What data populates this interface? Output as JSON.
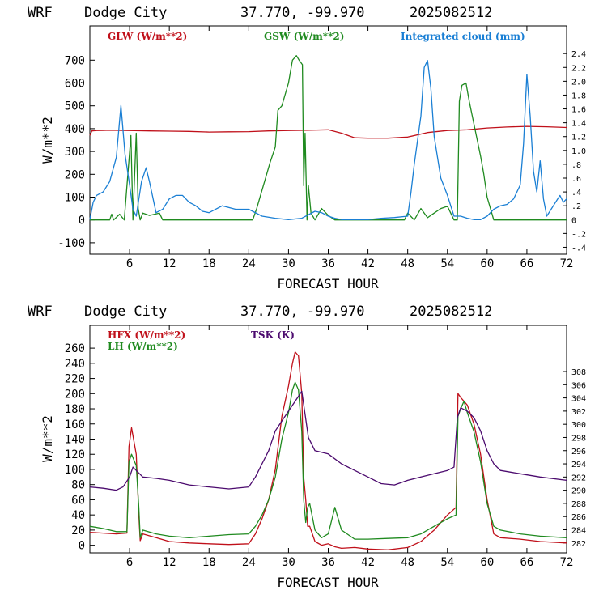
{
  "chart_data": [
    {
      "type": "line",
      "header": {
        "model": "WRF",
        "station": "Dodge City",
        "coords": "37.770, -99.970",
        "run": "2025082512"
      },
      "xlabel": "FORECAST HOUR",
      "ylabel": "W/m**2",
      "xlim": [
        0,
        72
      ],
      "xticks": [
        "6",
        "12",
        "18",
        "24",
        "30",
        "36",
        "42",
        "48",
        "54",
        "60",
        "66",
        "72"
      ],
      "ylim": [
        -150,
        850
      ],
      "yticks": [
        "-100",
        "0",
        "100",
        "200",
        "300",
        "400",
        "500",
        "600",
        "700"
      ],
      "y2lim": [
        -0.5,
        2.8
      ],
      "y2ticks": [
        "-.4",
        "-.2",
        "0",
        ".2",
        ".4",
        ".6",
        ".8",
        "1.0",
        "1.2",
        "1.4",
        "1.6",
        "1.8",
        "2.0",
        "2.2",
        "2.4"
      ],
      "series": [
        {
          "name": "GLW (W/m**2)",
          "color": "#c0101a",
          "axis": "left",
          "x": [
            0,
            0.3,
            1,
            3,
            6,
            9,
            12,
            15,
            18,
            21,
            24,
            27,
            30,
            33,
            36,
            38,
            40,
            42,
            45,
            48,
            51,
            54,
            57,
            60,
            63,
            66,
            69,
            72
          ],
          "values": [
            370,
            390,
            392,
            393,
            392,
            390,
            389,
            388,
            385,
            386,
            387,
            390,
            392,
            393,
            395,
            380,
            360,
            358,
            358,
            363,
            383,
            392,
            395,
            403,
            407,
            410,
            408,
            405
          ]
        },
        {
          "name": "GSW (W/m**2)",
          "color": "#1f8a1f",
          "axis": "left",
          "x": [
            0,
            3,
            3.3,
            3.6,
            4.5,
            5.2,
            6.2,
            6.5,
            7,
            7.3,
            7.6,
            8,
            9,
            10.5,
            11,
            11.5,
            24.6,
            25.2,
            26.2,
            27.2,
            28,
            28.4,
            29,
            30,
            30.6,
            31.2,
            31.6,
            32.1,
            32.3,
            32.5,
            32.8,
            33,
            33.4,
            34,
            35,
            36,
            37,
            47.5,
            48,
            49,
            50,
            51,
            52,
            53,
            54,
            55,
            55.5,
            55.8,
            56.2,
            56.8,
            57.3,
            58,
            59,
            59.5,
            60,
            60.5,
            61,
            72
          ],
          "values": [
            0,
            0,
            25,
            0,
            25,
            0,
            370,
            0,
            380,
            50,
            0,
            30,
            20,
            30,
            0,
            0,
            0,
            50,
            150,
            250,
            320,
            480,
            500,
            600,
            700,
            720,
            700,
            680,
            150,
            380,
            0,
            150,
            30,
            0,
            50,
            20,
            0,
            0,
            30,
            0,
            50,
            10,
            30,
            50,
            60,
            0,
            0,
            520,
            590,
            600,
            520,
            420,
            280,
            200,
            100,
            50,
            0,
            0
          ]
        },
        {
          "name": "Integrated cloud (mm)",
          "color": "#1a7fd4",
          "axis": "right",
          "x": [
            0,
            0.5,
            1,
            2,
            3,
            4,
            4.7,
            5.3,
            6,
            6.5,
            7,
            7.8,
            8.5,
            9,
            10,
            11,
            12,
            13,
            14,
            15,
            16,
            17,
            18,
            20,
            22,
            24,
            26,
            28,
            30,
            32,
            34,
            35,
            36,
            37,
            38,
            40,
            42,
            44,
            46,
            48,
            48.5,
            49,
            50,
            50.5,
            51,
            51.5,
            52,
            53,
            54,
            55,
            56,
            57,
            58,
            59,
            60,
            61,
            62,
            63,
            64,
            65,
            65.5,
            66,
            66.5,
            67,
            67.5,
            68,
            68.5,
            69,
            70,
            71,
            71.5,
            72
          ],
          "values": [
            0,
            0.25,
            0.35,
            0.4,
            0.55,
            0.9,
            1.65,
            0.95,
            0.5,
            0.15,
            0.05,
            0.55,
            0.75,
            0.55,
            0.1,
            0.15,
            0.3,
            0.35,
            0.35,
            0.25,
            0.2,
            0.12,
            0.1,
            0.2,
            0.15,
            0.15,
            0.05,
            0.02,
            0.0,
            0.02,
            0.12,
            0.1,
            0.05,
            0.02,
            0.0,
            0.0,
            0.0,
            0.02,
            0.03,
            0.05,
            0.4,
            0.8,
            1.5,
            2.2,
            2.3,
            1.9,
            1.2,
            0.6,
            0.35,
            0.05,
            0.05,
            0.02,
            0.0,
            0.0,
            0.05,
            0.15,
            0.2,
            0.22,
            0.3,
            0.5,
            1.1,
            2.1,
            1.5,
            0.7,
            0.4,
            0.85,
            0.3,
            0.05,
            0.2,
            0.35,
            0.25,
            0.3
          ]
        }
      ]
    },
    {
      "type": "line",
      "header": {
        "model": "WRF",
        "station": "Dodge City",
        "coords": "37.770, -99.970",
        "run": "2025082512"
      },
      "xlabel": "FORECAST HOUR",
      "ylabel": "W/m**2",
      "xlim": [
        0,
        72
      ],
      "xticks": [
        "6",
        "12",
        "18",
        "24",
        "30",
        "36",
        "42",
        "48",
        "54",
        "60",
        "66",
        "72"
      ],
      "ylim": [
        -10,
        290
      ],
      "yticks": [
        "0",
        "20",
        "40",
        "60",
        "80",
        "100",
        "120",
        "140",
        "160",
        "180",
        "200",
        "220",
        "240",
        "260"
      ],
      "y2lim": [
        280.5,
        315
      ],
      "y2ticks": [
        "282",
        "284",
        "286",
        "288",
        "290",
        "292",
        "294",
        "296",
        "298",
        "300",
        "302",
        "304",
        "306",
        "308"
      ],
      "series": [
        {
          "name": "HFX (W/m**2)",
          "color": "#c0101a",
          "axis": "left",
          "x": [
            0,
            2,
            4,
            5.6,
            5.9,
            6.3,
            7,
            7.4,
            7.6,
            8,
            10,
            12,
            15,
            18,
            21,
            24,
            25,
            26,
            27,
            28,
            29,
            30,
            30.6,
            31,
            31.5,
            32,
            32.3,
            32.6,
            32.9,
            33.2,
            34,
            35,
            36,
            37,
            38,
            40,
            42,
            45,
            48,
            50,
            52,
            54,
            55.3,
            55.6,
            56,
            56.5,
            57,
            58,
            59,
            60,
            61,
            62,
            65,
            68,
            72
          ],
          "values": [
            17,
            16,
            15,
            16,
            130,
            155,
            120,
            40,
            6,
            15,
            10,
            5,
            3,
            2,
            1,
            2,
            15,
            35,
            60,
            100,
            170,
            210,
            240,
            255,
            250,
            200,
            90,
            60,
            25,
            25,
            5,
            0,
            2,
            -2,
            -4,
            -3,
            -5,
            -6,
            -3,
            5,
            20,
            40,
            50,
            200,
            195,
            190,
            185,
            160,
            120,
            60,
            15,
            10,
            8,
            5,
            3
          ]
        },
        {
          "name": "LH  (W/m**2)",
          "color": "#1f8a1f",
          "axis": "left",
          "x": [
            0,
            2,
            4,
            5.6,
            5.9,
            6.3,
            7,
            7.4,
            7.6,
            8,
            10,
            12,
            15,
            18,
            21,
            24,
            25,
            26,
            27,
            28,
            29,
            30,
            30.6,
            31,
            31.5,
            32,
            32.3,
            32.6,
            32.9,
            33.2,
            34,
            35,
            36,
            37,
            38,
            40,
            42,
            45,
            48,
            50,
            52,
            54,
            55.3,
            55.6,
            56,
            56.5,
            57,
            58,
            59,
            60,
            61,
            62,
            65,
            68,
            72
          ],
          "values": [
            25,
            22,
            18,
            18,
            110,
            120,
            105,
            50,
            10,
            20,
            15,
            12,
            10,
            12,
            14,
            15,
            25,
            40,
            60,
            90,
            140,
            175,
            205,
            215,
            205,
            150,
            60,
            30,
            50,
            55,
            20,
            10,
            15,
            50,
            20,
            8,
            8,
            9,
            10,
            15,
            25,
            35,
            40,
            170,
            180,
            190,
            175,
            150,
            110,
            55,
            25,
            20,
            15,
            12,
            10
          ]
        },
        {
          "name": "TSK (K)",
          "color": "#4b0a6e",
          "axis": "right",
          "x": [
            0,
            2,
            4,
            5,
            6,
            6.5,
            7,
            8,
            10,
            12,
            15,
            18,
            21,
            24,
            25,
            26,
            27,
            28,
            29,
            30,
            31,
            32,
            33,
            34,
            36,
            38,
            40,
            42,
            44,
            46,
            48,
            50,
            52,
            54,
            55,
            55.5,
            56,
            57,
            58,
            59,
            60,
            61,
            62,
            65,
            68,
            72
          ],
          "values": [
            290.5,
            290.3,
            290.0,
            290.5,
            292,
            293.5,
            293,
            292,
            291.8,
            291.5,
            290.8,
            290.5,
            290.2,
            290.5,
            292,
            294,
            296,
            299,
            300.5,
            302,
            303.5,
            305,
            298,
            296,
            295.5,
            294,
            293,
            292,
            291,
            290.8,
            291.5,
            292,
            292.5,
            293,
            293.5,
            301,
            302.5,
            302,
            301,
            299,
            296,
            294,
            293,
            292.5,
            292,
            291.5
          ]
        }
      ]
    }
  ]
}
